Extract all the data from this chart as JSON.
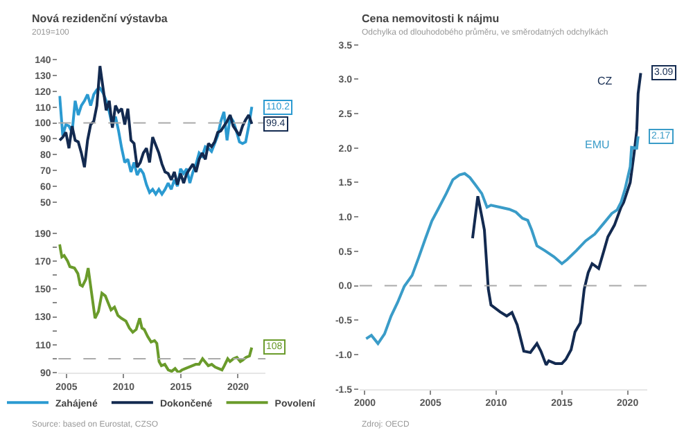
{
  "chart_data": [
    {
      "type": "line",
      "title": "Nová rezidenční výstavba",
      "subtitle": "2019=100",
      "categories": [
        null,
        null,
        null,
        null,
        null,
        null,
        null,
        null,
        null,
        null,
        null,
        null,
        null,
        null,
        null,
        null,
        null,
        null,
        null,
        null,
        null,
        null,
        null,
        null,
        null,
        null,
        null,
        null,
        null,
        null,
        null,
        null,
        null,
        null,
        null,
        null,
        null,
        null,
        null,
        null,
        null,
        null,
        null,
        null,
        null,
        null,
        null,
        null,
        null,
        null,
        null,
        null,
        null,
        null,
        null,
        null,
        null,
        null,
        null,
        null,
        null,
        null,
        null
      ],
      "ylim": [
        50,
        140
      ],
      "yticks": [
        50,
        60,
        70,
        80,
        90,
        100,
        110,
        120,
        130,
        140
      ],
      "tick_labels": "y",
      "grid": false,
      "legend": "bottom",
      "ref_lines": [
        {
          "axis": "y",
          "value": 100,
          "color": "#aaaaaa",
          "line_style": "dashed"
        }
      ],
      "series": [
        {
          "name": "Zahájené",
          "color": "#2b9ad1",
          "values": [
            117,
            92,
            99,
            98,
            94,
            114,
            105,
            111,
            114,
            118,
            111,
            118,
            121,
            122,
            119,
            114,
            107,
            98,
            104,
            95,
            84,
            75,
            77,
            69,
            75,
            67,
            71,
            68,
            61,
            56,
            58,
            55,
            58,
            55,
            58,
            62,
            58,
            64,
            60,
            71,
            68,
            71,
            62,
            69,
            74,
            81,
            79,
            85,
            84,
            82,
            87,
            92,
            101,
            107,
            89,
            104,
            101,
            95,
            88,
            87,
            88,
            98,
            110.2
          ],
          "value_labels": [
            null,
            null,
            null,
            null,
            null,
            null,
            null,
            null,
            null,
            null,
            null,
            null,
            null,
            null,
            null,
            null,
            null,
            null,
            null,
            null,
            null,
            null,
            null,
            null,
            null,
            null,
            null,
            null,
            null,
            null,
            null,
            null,
            null,
            null,
            null,
            null,
            null,
            null,
            null,
            null,
            null,
            null,
            null,
            null,
            null,
            null,
            null,
            null,
            null,
            null,
            null,
            null,
            null,
            null,
            null,
            null,
            null,
            null,
            null,
            null,
            null,
            null,
            "110.2"
          ]
        },
        {
          "name": "Dokončené",
          "color": "#132a50",
          "values": [
            89,
            91,
            94,
            84,
            98,
            89,
            88,
            81,
            72,
            89,
            99,
            101,
            111,
            136,
            122,
            108,
            114,
            97,
            111,
            107,
            109,
            99,
            109,
            89,
            87,
            72,
            75,
            81,
            84,
            75,
            91,
            86,
            81,
            74,
            69,
            68,
            64,
            69,
            61,
            68,
            62,
            68,
            71,
            74,
            69,
            77,
            81,
            77,
            87,
            85,
            88,
            94,
            95,
            98,
            101,
            105,
            98,
            95,
            92,
            98,
            102,
            105,
            99.4
          ],
          "value_labels": [
            null,
            null,
            null,
            null,
            null,
            null,
            null,
            null,
            null,
            null,
            null,
            null,
            null,
            null,
            null,
            null,
            null,
            null,
            null,
            null,
            null,
            null,
            null,
            null,
            null,
            null,
            null,
            null,
            null,
            null,
            null,
            null,
            null,
            null,
            null,
            null,
            null,
            null,
            null,
            null,
            null,
            null,
            null,
            null,
            null,
            null,
            null,
            null,
            null,
            null,
            null,
            null,
            null,
            null,
            null,
            null,
            null,
            null,
            null,
            null,
            null,
            null,
            "99.4"
          ]
        }
      ]
    },
    {
      "type": "line",
      "xlim": [
        2004.3,
        2022.4
      ],
      "ylim": [
        90,
        190
      ],
      "xticks": [
        2005,
        2010,
        2015,
        2020
      ],
      "yticks": [
        90,
        {
          "value": 100,
          "label": null
        },
        110,
        {
          "value": 120,
          "label": null
        },
        130,
        {
          "value": 140,
          "label": null
        },
        150,
        {
          "value": 160,
          "label": null
        },
        170,
        {
          "value": 180,
          "label": null
        },
        190
      ],
      "grid": false,
      "legend": "bottom",
      "ref_lines": [
        {
          "axis": "y",
          "value": 100,
          "color": "#aaaaaa",
          "line_style": "dashed"
        }
      ],
      "annotations": [
        "Source: based on Eurostat, CZSO"
      ],
      "series": [
        {
          "name": "Povolení",
          "color": "#6a9b2b",
          "x": [
            2004.4,
            2004.6,
            2004.8,
            2005.1,
            2005.3,
            2005.7,
            2006.0,
            2006.2,
            2006.4,
            2006.7,
            2006.9,
            2007.2,
            2007.5,
            2007.8,
            2008.1,
            2008.4,
            2008.7,
            2008.9,
            2009.2,
            2009.5,
            2009.8,
            2010.2,
            2010.5,
            2010.8,
            2011.1,
            2011.4,
            2011.6,
            2011.8,
            2012.1,
            2012.4,
            2012.7,
            2012.9,
            2013.1,
            2013.3,
            2013.6,
            2013.9,
            2014.2,
            2014.5,
            2014.8,
            2015.1,
            2015.4,
            2015.7,
            2016.0,
            2016.3,
            2016.6,
            2016.9,
            2017.1,
            2017.4,
            2017.7,
            2018.0,
            2018.3,
            2018.6,
            2018.8,
            2019.1,
            2019.3,
            2019.6,
            2019.9,
            2020.2,
            2020.4,
            2020.7,
            2021.0,
            2021.2
          ],
          "values": [
            182,
            173,
            174,
            170,
            166,
            165,
            161,
            153,
            152,
            157,
            165,
            147,
            129,
            134,
            147,
            145,
            139,
            135,
            137,
            131,
            129,
            127,
            122,
            119,
            121,
            129,
            122,
            121,
            116,
            112,
            113,
            111,
            98,
            95,
            96,
            92,
            91,
            93,
            90,
            92,
            93,
            94,
            95,
            96,
            96,
            100,
            98,
            95,
            96,
            94,
            93,
            92,
            95,
            100,
            98,
            100,
            101,
            98,
            99,
            101,
            102,
            108
          ],
          "value_labels": [
            null,
            null,
            null,
            null,
            null,
            null,
            null,
            null,
            null,
            null,
            null,
            null,
            null,
            null,
            null,
            null,
            null,
            null,
            null,
            null,
            null,
            null,
            null,
            null,
            null,
            null,
            null,
            null,
            null,
            null,
            null,
            null,
            null,
            null,
            null,
            null,
            null,
            null,
            null,
            null,
            null,
            null,
            null,
            null,
            null,
            null,
            null,
            null,
            null,
            null,
            null,
            null,
            null,
            null,
            null,
            null,
            null,
            null,
            null,
            null,
            null,
            "108"
          ]
        }
      ]
    },
    {
      "type": "line",
      "title": "Cena nemovitosti k nájmu",
      "subtitle": "Odchylka od dlouhodobého průměru, ve směrodatných odchylkách",
      "xlim": [
        1999.6,
        2021.5
      ],
      "ylim": [
        -1.5,
        3.5
      ],
      "xticks": [
        2000,
        2005,
        2010,
        2015,
        2020
      ],
      "yticks": [
        {
          "value": -1.5,
          "label": "-1.5"
        },
        {
          "value": -1,
          "label": "-1.0"
        },
        {
          "value": -0.5,
          "label": "-0.5"
        },
        {
          "value": 0,
          "label": "0.0"
        },
        {
          "value": 0.5,
          "label": "0.5"
        },
        {
          "value": 1,
          "label": "1.0"
        },
        {
          "value": 1.5,
          "label": "1.5"
        },
        {
          "value": 2,
          "label": "2.0"
        },
        {
          "value": 2.5,
          "label": "2.5"
        },
        {
          "value": 3,
          "label": "3.0"
        },
        {
          "value": 3.5,
          "label": "3.5"
        }
      ],
      "grid": false,
      "legend": false,
      "ref_lines": [
        {
          "axis": "y",
          "value": 0,
          "color": "#aaaaaa",
          "line_style": "dashed"
        }
      ],
      "annotations": [
        "Zdroj: OECD"
      ],
      "series": [
        {
          "name": "CZ",
          "color": "#132a50",
          "x": [
            2008.2,
            2008.6,
            2008.9,
            2009.1,
            2009.4,
            2009.6,
            2010.3,
            2010.8,
            2011.2,
            2011.6,
            2012.1,
            2012.6,
            2013.1,
            2013.4,
            2013.8,
            2014.0,
            2014.5,
            2015.0,
            2015.3,
            2015.7,
            2016.0,
            2016.4,
            2016.7,
            2017.0,
            2017.3,
            2017.8,
            2018.2,
            2018.5,
            2019.0,
            2019.5,
            2019.7,
            2020.2,
            2020.5,
            2020.7,
            2020.8,
            2021.0
          ],
          "values": [
            0.69,
            1.3,
            1.01,
            0.81,
            -0.05,
            -0.28,
            -0.38,
            -0.44,
            -0.39,
            -0.57,
            -0.95,
            -0.97,
            -0.84,
            -0.95,
            -1.15,
            -1.09,
            -1.13,
            -1.13,
            -1.07,
            -0.93,
            -0.67,
            -0.54,
            -0.05,
            0.19,
            0.32,
            0.25,
            0.51,
            0.71,
            0.88,
            1.14,
            1.21,
            1.5,
            1.93,
            2.26,
            2.79,
            3.09
          ],
          "value_labels": [
            null,
            null,
            null,
            null,
            null,
            null,
            null,
            null,
            null,
            null,
            null,
            null,
            null,
            null,
            null,
            null,
            null,
            null,
            null,
            null,
            null,
            null,
            null,
            null,
            null,
            null,
            null,
            null,
            null,
            null,
            null,
            null,
            null,
            null,
            null,
            "3.09"
          ]
        },
        {
          "name": "EMU",
          "color": "#3a9cc8",
          "x": [
            2000.1,
            2000.5,
            2001.0,
            2001.5,
            2002.0,
            2002.5,
            2003.0,
            2003.6,
            2004.1,
            2004.6,
            2005.1,
            2005.6,
            2006.2,
            2006.7,
            2007.2,
            2007.6,
            2008.0,
            2008.4,
            2008.9,
            2009.3,
            2009.6,
            2010.3,
            2011.0,
            2011.5,
            2012.0,
            2012.4,
            2012.7,
            2013.1,
            2013.7,
            2014.4,
            2015.0,
            2015.4,
            2016.1,
            2016.8,
            2017.5,
            2018.2,
            2018.8,
            2019.2,
            2019.5,
            2019.8,
            2020.2,
            2020.3,
            2020.7,
            2020.8
          ],
          "values": [
            -0.77,
            -0.72,
            -0.84,
            -0.7,
            -0.44,
            -0.24,
            -0.01,
            0.15,
            0.41,
            0.68,
            0.94,
            1.12,
            1.34,
            1.54,
            1.61,
            1.63,
            1.57,
            1.47,
            1.34,
            1.14,
            1.17,
            1.14,
            1.11,
            1.07,
            0.98,
            0.95,
            0.81,
            0.58,
            0.51,
            0.42,
            0.32,
            0.38,
            0.51,
            0.65,
            0.75,
            0.91,
            1.05,
            1.1,
            1.21,
            1.4,
            1.73,
            2.01,
            2.0,
            2.17
          ],
          "value_labels": [
            null,
            null,
            null,
            null,
            null,
            null,
            null,
            null,
            null,
            null,
            null,
            null,
            null,
            null,
            null,
            null,
            null,
            null,
            null,
            null,
            null,
            null,
            null,
            null,
            null,
            null,
            null,
            null,
            null,
            null,
            null,
            null,
            null,
            null,
            null,
            null,
            null,
            null,
            null,
            null,
            null,
            null,
            null,
            "2.17"
          ]
        }
      ]
    }
  ]
}
